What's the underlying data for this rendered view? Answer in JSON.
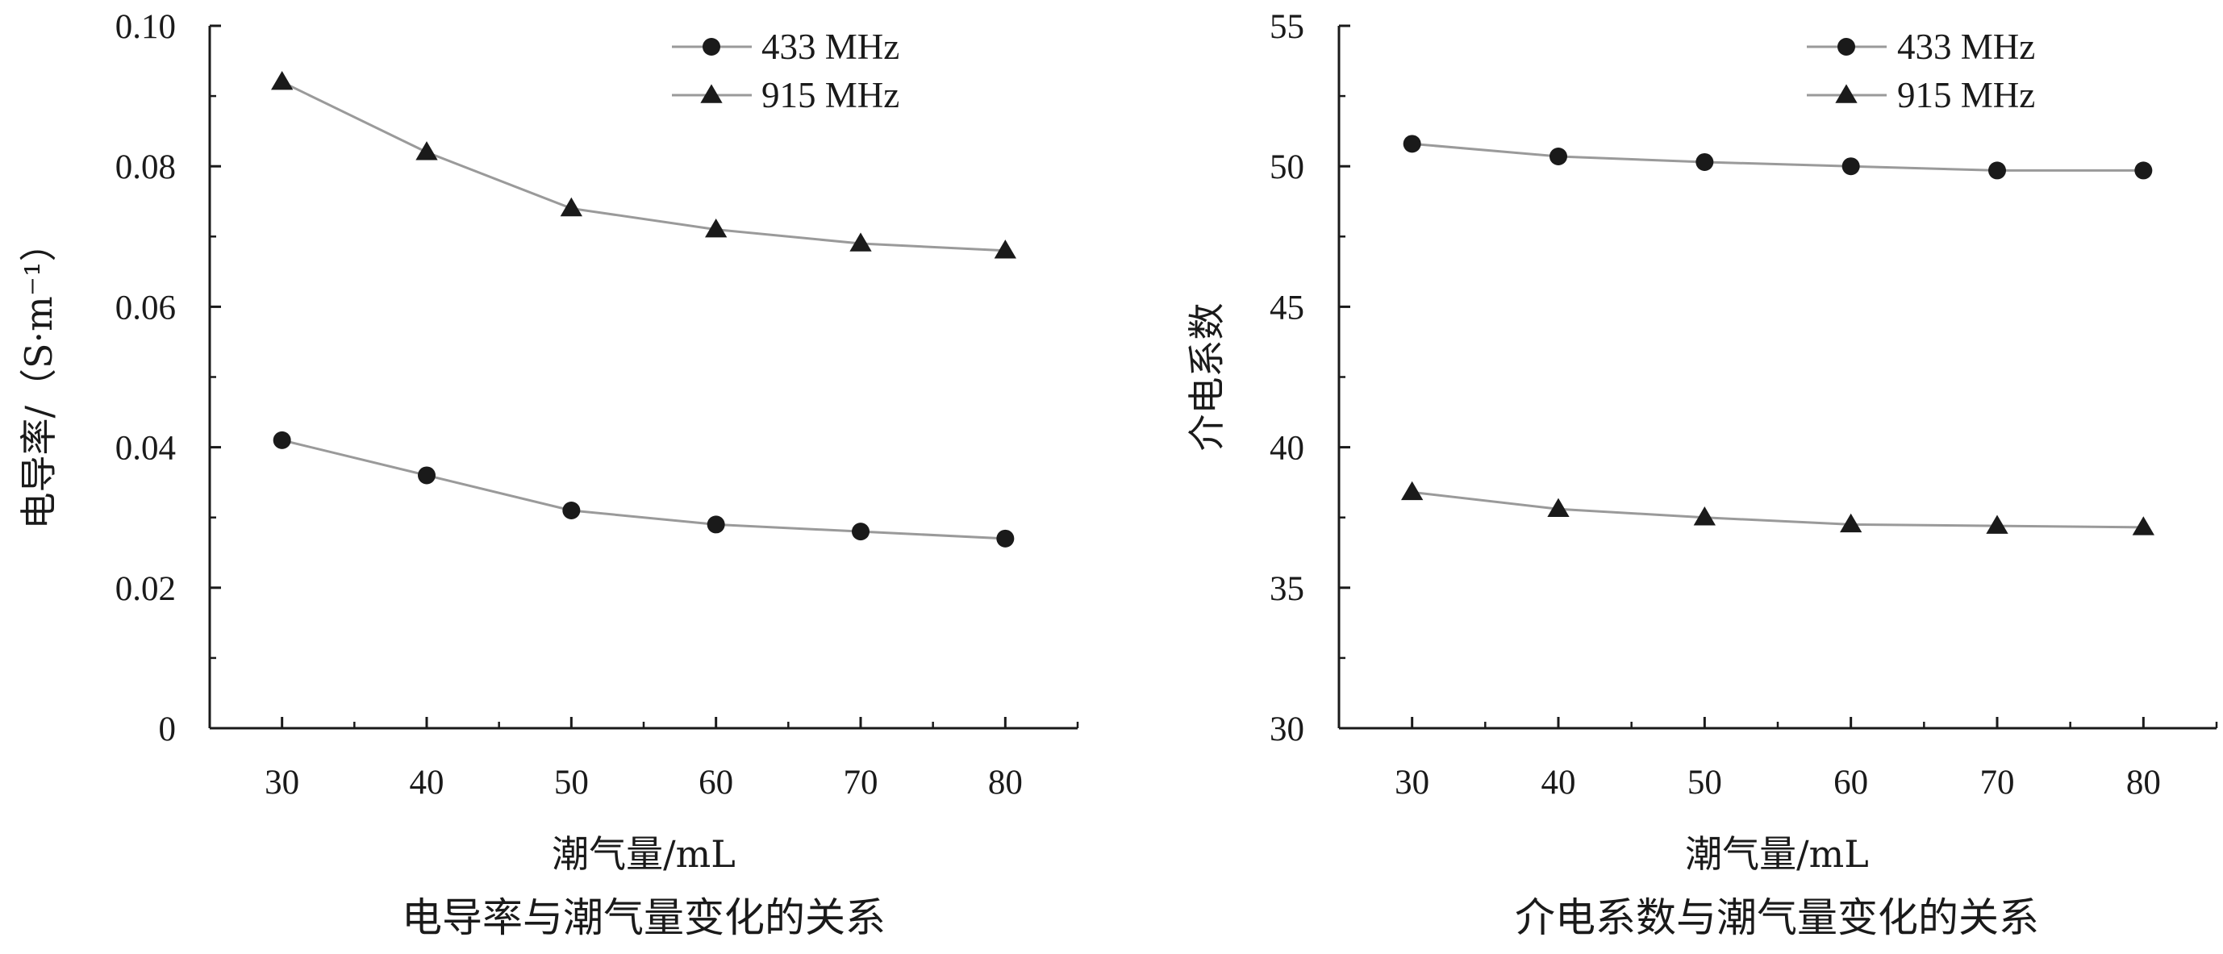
{
  "colors": {
    "axis": "#1a1a1a",
    "line": "#9a9a9a",
    "marker": "#1a1a1a",
    "text": "#1a1a1a"
  },
  "chart_data": [
    {
      "type": "line",
      "caption": "电导率与潮气量变化的关系",
      "xlabel": "潮气量/mL",
      "ylabel": "电导率/（S·m⁻¹）",
      "x": [
        30,
        40,
        50,
        60,
        70,
        80
      ],
      "xlim": [
        25,
        85
      ],
      "ylim": [
        0,
        0.1
      ],
      "yticks": [
        0,
        0.02,
        0.04,
        0.06,
        0.08,
        0.1
      ],
      "ytick_labels": [
        "0",
        "0.02",
        "0.04",
        "0.06",
        "0.08",
        "0.10"
      ],
      "grid": false,
      "legend_position": "top-right",
      "series": [
        {
          "name": "433 MHz",
          "marker": "circle",
          "values": [
            0.041,
            0.036,
            0.031,
            0.029,
            0.028,
            0.027
          ]
        },
        {
          "name": "915 MHz",
          "marker": "triangle",
          "values": [
            0.092,
            0.082,
            0.074,
            0.071,
            0.069,
            0.068
          ]
        }
      ]
    },
    {
      "type": "line",
      "caption": "介电系数与潮气量变化的关系",
      "xlabel": "潮气量/mL",
      "ylabel": "介电系数",
      "x": [
        30,
        40,
        50,
        60,
        70,
        80
      ],
      "xlim": [
        25,
        85
      ],
      "ylim": [
        30,
        55
      ],
      "yticks": [
        30,
        35,
        40,
        45,
        50,
        55
      ],
      "ytick_labels": [
        "30",
        "35",
        "40",
        "45",
        "50",
        "55"
      ],
      "grid": false,
      "legend_position": "top-right",
      "series": [
        {
          "name": "433 MHz",
          "marker": "circle",
          "values": [
            50.8,
            50.35,
            50.15,
            50.0,
            49.85,
            49.85
          ]
        },
        {
          "name": "915 MHz",
          "marker": "triangle",
          "values": [
            38.4,
            37.8,
            37.5,
            37.25,
            37.2,
            37.15
          ]
        }
      ]
    }
  ]
}
